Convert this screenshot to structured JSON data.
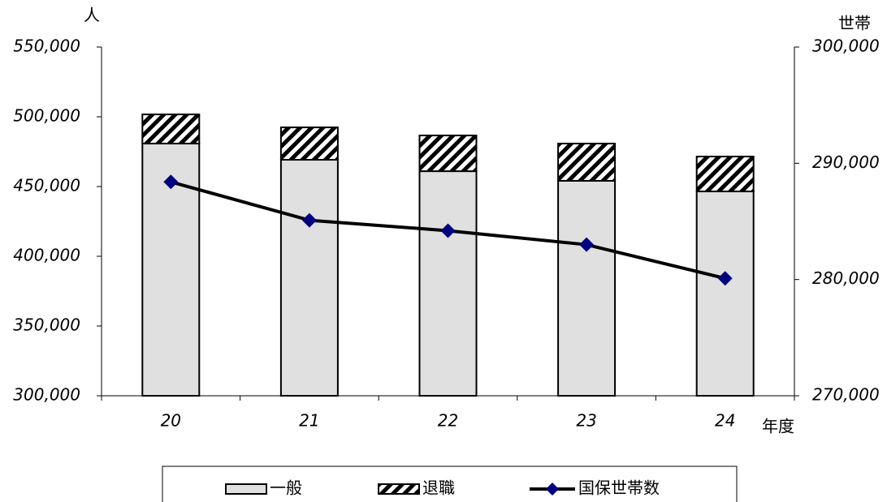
{
  "chart_data": {
    "type": "bar-line",
    "y_label": "人",
    "y2_label": "世帯",
    "x_label": "年度",
    "categories": [
      "20",
      "21",
      "22",
      "23",
      "24"
    ],
    "series": [
      {
        "name": "一般",
        "type": "bar",
        "color": "#e0e0e0",
        "values": [
          480800,
          469200,
          461000,
          454100,
          446500
        ]
      },
      {
        "name": "退職",
        "type": "bar",
        "color": "hatch",
        "values": [
          20900,
          23200,
          25600,
          26700,
          25000
        ]
      },
      {
        "name": "国保世帯数",
        "type": "line",
        "axis": "y2",
        "color": "#000080",
        "values": [
          288400,
          285100,
          284200,
          283000,
          280100
        ]
      }
    ],
    "ylim": [
      300000,
      550000
    ],
    "yticks": [
      {
        "value": 300000,
        "label": "300,000"
      },
      {
        "value": 350000,
        "label": "350,000"
      },
      {
        "value": 400000,
        "label": "400,000"
      },
      {
        "value": 450000,
        "label": "450,000"
      },
      {
        "value": 500000,
        "label": "500,000"
      },
      {
        "value": 550000,
        "label": "550,000"
      }
    ],
    "y2lim": [
      270000,
      300000
    ],
    "y2ticks": [
      {
        "value": 270000,
        "label": "270,000"
      },
      {
        "value": 280000,
        "label": "280,000"
      },
      {
        "value": 290000,
        "label": "290,000"
      },
      {
        "value": 300000,
        "label": "300,000"
      }
    ],
    "legend": "bottom"
  }
}
